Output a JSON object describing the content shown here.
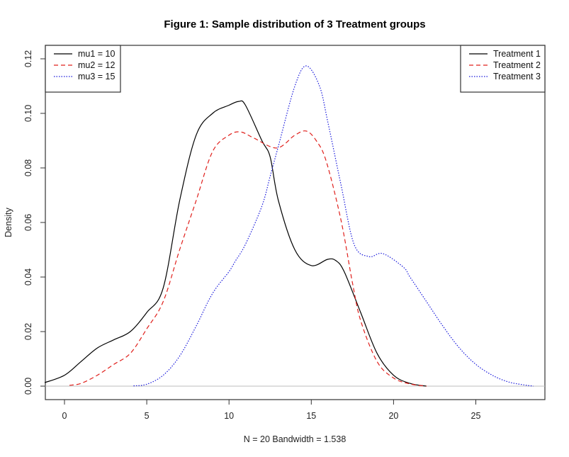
{
  "chart_data": {
    "type": "line",
    "title": "Figure 1: Sample distribution of 3 Treatment groups",
    "xlabel": "N = 20   Bandwidth = 1.538",
    "ylabel": "Density",
    "xlim": [
      -1.2,
      29.3
    ],
    "ylim": [
      -0.005,
      0.124
    ],
    "xticks": [
      0,
      5,
      10,
      15,
      20,
      25
    ],
    "yticks": [
      0.0,
      0.02,
      0.04,
      0.06,
      0.08,
      0.1,
      0.12
    ],
    "ytick_labels": [
      "0.00",
      "0.02",
      "0.04",
      "0.06",
      "0.08",
      "0.10",
      "0.12"
    ],
    "baseline": 0,
    "grid": false,
    "series": [
      {
        "name": "Treatment 1",
        "color": "#000000",
        "dash": "solid",
        "x": [
          -1.2,
          0,
          1,
          2,
          3,
          4,
          5,
          6,
          7,
          8,
          9,
          10,
          10.6,
          11,
          12,
          12.5,
          13,
          14,
          15,
          16,
          16.5,
          17,
          18,
          19,
          20,
          21,
          22
        ],
        "y": [
          0.0013,
          0.004,
          0.009,
          0.014,
          0.017,
          0.02,
          0.027,
          0.036,
          0.068,
          0.092,
          0.1,
          0.103,
          0.1044,
          0.103,
          0.09,
          0.084,
          0.068,
          0.05,
          0.0442,
          0.0465,
          0.046,
          0.042,
          0.027,
          0.012,
          0.004,
          0.001,
          0.0
        ]
      },
      {
        "name": "Treatment 2",
        "color": "#e0201c",
        "dash": "dashed",
        "x": [
          0.3,
          1,
          2,
          3,
          4,
          5,
          6,
          7,
          8,
          9,
          10,
          10.7,
          11.5,
          12.9,
          14,
          14.7,
          15.3,
          15.9,
          16.8,
          17.5,
          18,
          19,
          20,
          21,
          22
        ],
        "y": [
          0.0003,
          0.001,
          0.004,
          0.008,
          0.012,
          0.021,
          0.031,
          0.05,
          0.068,
          0.086,
          0.092,
          0.0932,
          0.091,
          0.0873,
          0.092,
          0.0935,
          0.09,
          0.0826,
          0.061,
          0.038,
          0.024,
          0.009,
          0.003,
          0.0008,
          0.0
        ]
      },
      {
        "name": "Treatment 3",
        "color": "#1a1adc",
        "dash": "dotted",
        "x": [
          4.2,
          5,
          6,
          7,
          8,
          9,
          10,
          10.4,
          11,
          12,
          12.5,
          13,
          14,
          14.7,
          15.5,
          16,
          16.8,
          17.6,
          18.5,
          19.35,
          20.6,
          21,
          22,
          23,
          24,
          25,
          26,
          27,
          28,
          28.5
        ],
        "y": [
          0.0001,
          0.0007,
          0.004,
          0.011,
          0.022,
          0.034,
          0.042,
          0.046,
          0.052,
          0.066,
          0.077,
          0.088,
          0.11,
          0.1174,
          0.11,
          0.097,
          0.074,
          0.052,
          0.0475,
          0.0486,
          0.0436,
          0.04,
          0.031,
          0.022,
          0.014,
          0.008,
          0.004,
          0.0015,
          0.0004,
          0.0
        ]
      }
    ],
    "legends": [
      {
        "position": "top-left",
        "entries": [
          {
            "label": "mu1 = 10",
            "color": "#000000",
            "dash": "solid"
          },
          {
            "label": "mu2 = 12",
            "color": "#e0201c",
            "dash": "dashed"
          },
          {
            "label": "mu3 = 15",
            "color": "#1a1adc",
            "dash": "dotted"
          }
        ]
      },
      {
        "position": "top-right",
        "entries": [
          {
            "label": "Treatment 1",
            "color": "#000000",
            "dash": "solid"
          },
          {
            "label": "Treatment 2",
            "color": "#e0201c",
            "dash": "dashed"
          },
          {
            "label": "Treatment 3",
            "color": "#1a1adc",
            "dash": "dotted"
          }
        ]
      }
    ]
  }
}
